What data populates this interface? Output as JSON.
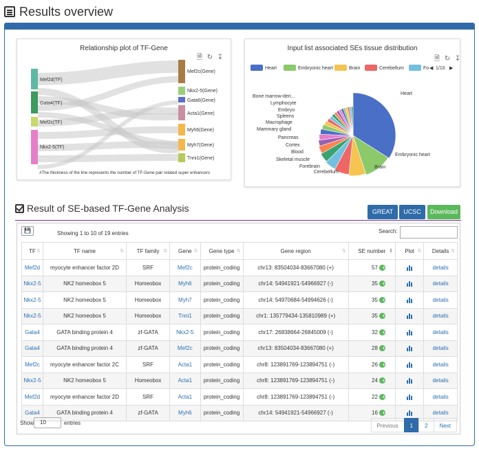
{
  "header": {
    "title": "Results overview"
  },
  "sankey": {
    "title": "Relationship plot of TF-Gene",
    "tf_nodes": [
      "Mef2d(TF)",
      "Gata4(TF)",
      "Mef2c(TF)",
      "Nkx2-5(TF)"
    ],
    "gene_nodes": [
      "Mef2c(Gene)",
      "Nkx2-5(Gene)",
      "Gata6(Gene)",
      "Acta1(Gene)",
      "Myh6(Gene)",
      "Myh7(Gene)",
      "Tnni1(Gene)"
    ],
    "note": "#The thickness of the line represents the number of TF-Gene pair related super enhancers",
    "colors": {
      "mef2d": "#5fb8a4",
      "gata4": "#3e9a5f",
      "mef2c": "#c8d86b",
      "nkx25": "#e57fc9",
      "g_mef2c": "#a77b47",
      "g_nkx25": "#9bd07a",
      "g_gata6": "#5a6fc7",
      "g_acta1": "#c98fa0",
      "g_myh6": "#f5b84a",
      "g_myh7": "#f5b84a",
      "g_tnni1": "#b8c85a"
    }
  },
  "pie": {
    "title": "Input list associated SEs tissue distribution",
    "legend": [
      {
        "name": "Heart",
        "color": "#4a6fc7"
      },
      {
        "name": "Embryonic heart",
        "color": "#8cc96b"
      },
      {
        "name": "Brain",
        "color": "#f5c451"
      },
      {
        "name": "Cerebellum",
        "color": "#ee6666"
      },
      {
        "name": "Fo",
        "color": "#73c0de"
      }
    ],
    "legend_page": "1/10",
    "labels_left": [
      "Bone marrow-deri...",
      "Lymphocyte",
      "Embryo",
      "Spleens",
      "Macrophage",
      "Mammary gland",
      "Pancreas",
      "Cortex",
      "Blood",
      "Skeletal muscle",
      "Forebrain",
      "Cerebellum"
    ],
    "labels_right": [
      "Heart",
      "Embryonic heart",
      "Brain"
    ]
  },
  "chart_data": {
    "type": "pie",
    "title": "Input list associated SEs tissue distribution",
    "slices": [
      {
        "name": "Heart",
        "value": 25
      },
      {
        "name": "Embryonic heart",
        "value": 8
      },
      {
        "name": "Brain",
        "value": 5
      },
      {
        "name": "Cerebellum",
        "value": 4.5
      },
      {
        "name": "Forebrain",
        "value": 3.5
      },
      {
        "name": "Skeletal muscle",
        "value": 3
      },
      {
        "name": "Blood",
        "value": 2.5
      },
      {
        "name": "Cortex",
        "value": 2
      },
      {
        "name": "Pancreas",
        "value": 2
      },
      {
        "name": "Mammary gland",
        "value": 2
      },
      {
        "name": "Macrophage",
        "value": 1.8
      },
      {
        "name": "Spleens",
        "value": 1.6
      },
      {
        "name": "Embryo",
        "value": 1.5
      },
      {
        "name": "Lymphocyte",
        "value": 1.4
      },
      {
        "name": "Bone marrow-deri...",
        "value": 1.3
      },
      {
        "name": "",
        "value": 1.2
      },
      {
        "name": "",
        "value": 1.1
      },
      {
        "name": "",
        "value": 1.0
      },
      {
        "name": "",
        "value": 1.0
      },
      {
        "name": "",
        "value": 0.9
      },
      {
        "name": "",
        "value": 0.9
      },
      {
        "name": "",
        "value": 0.8
      },
      {
        "name": "",
        "value": 0.8
      },
      {
        "name": "",
        "value": 0.7
      }
    ],
    "colors": [
      "#4a6fc7",
      "#8cc96b",
      "#f5c451",
      "#ee6666",
      "#73c0de",
      "#3ba272",
      "#fc8452",
      "#9a60b4",
      "#ea7ccc",
      "#4a6fc7",
      "#8cc96b",
      "#f5c451",
      "#ee6666",
      "#73c0de",
      "#3ba272",
      "#fc8452",
      "#9a60b4",
      "#ea7ccc",
      "#4a6fc7",
      "#8cc96b",
      "#f5c451",
      "#ee6666",
      "#73c0de",
      "#3ba272"
    ]
  },
  "section": {
    "title": "Result of SE-based TF-Gene Analysis"
  },
  "buttons": {
    "great": "GREAT",
    "ucsc": "UCSC",
    "download": "Download"
  },
  "table": {
    "showing": "Showing 1 to 10 of 19 entries",
    "search_label": "Search:",
    "columns": [
      "TF",
      "TF name",
      "TF family",
      "Gene",
      "Gene type",
      "Gene region",
      "SE number",
      "Plot",
      "Details"
    ],
    "rows": [
      [
        "Mef2d",
        "myocyte enhancer factor 2D",
        "SRF",
        "Mef2c",
        "protein_coding",
        "chr13:  83504034-83667080  (+)",
        "57",
        "details"
      ],
      [
        "Nkx2-5",
        "NK2 homeobox 5",
        "Homeobox",
        "Myh6",
        "protein_coding",
        "chr14:  54941921-54966927  (-)",
        "35",
        "details"
      ],
      [
        "Nkx2-5",
        "NK2 homeobox 5",
        "Homeobox",
        "Myh7",
        "protein_coding",
        "chr14:  54970684-54994626  (-)",
        "35",
        "details"
      ],
      [
        "Nkx2-5",
        "NK2 homeobox 5",
        "Homeobox",
        "Tnni1",
        "protein_coding",
        "chr1:  135779434-135810989  (+)",
        "35",
        "details"
      ],
      [
        "Gata4",
        "GATA binding protein 4",
        "zf-GATA",
        "Nkx2-5",
        "protein_coding",
        "chr17:  26838664-26845009  (-)",
        "32",
        "details"
      ],
      [
        "Gata4",
        "GATA binding protein 4",
        "zf-GATA",
        "Mef2c",
        "protein_coding",
        "chr13:  83504034-83667080  (+)",
        "28",
        "details"
      ],
      [
        "Mef2c",
        "myocyte enhancer factor 2C",
        "SRF",
        "Acta1",
        "protein_coding",
        "chr8:  123891769-123894751  (-)",
        "26",
        "details"
      ],
      [
        "Nkx2-5",
        "NK2 homeobox 5",
        "Homeobox",
        "Acta1",
        "protein_coding",
        "chr8:  123891769-123894751  (-)",
        "24",
        "details"
      ],
      [
        "Mef2d",
        "myocyte enhancer factor 2D",
        "SRF",
        "Acta1",
        "protein_coding",
        "chr8:  123891769-123894751  (-)",
        "22",
        "details"
      ],
      [
        "Gata4",
        "GATA binding protein 4",
        "zf-GATA",
        "Myh6",
        "protein_coding",
        "chr14:  54941921-54966927  (-)",
        "16",
        "details"
      ]
    ],
    "show_label": "Show",
    "page_size": "10",
    "entries_label": "entries",
    "pager": {
      "previous": "Previous",
      "page1": "1",
      "page2": "2",
      "next": "Next"
    }
  }
}
